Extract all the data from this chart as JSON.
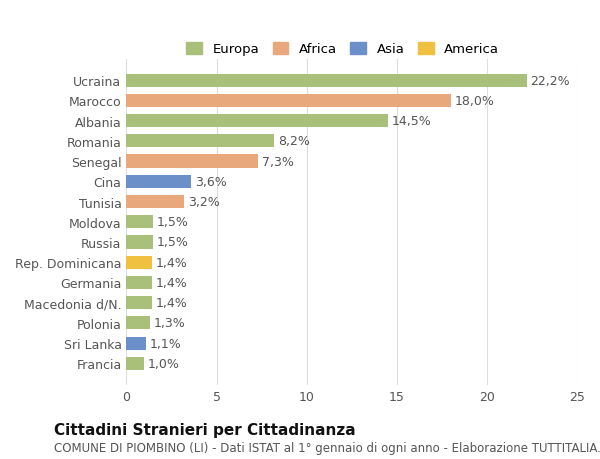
{
  "categories": [
    "Ucraina",
    "Marocco",
    "Albania",
    "Romania",
    "Senegal",
    "Cina",
    "Tunisia",
    "Moldova",
    "Russia",
    "Rep. Dominicana",
    "Germania",
    "Macedonia d/N.",
    "Polonia",
    "Sri Lanka",
    "Francia"
  ],
  "values": [
    22.2,
    18.0,
    14.5,
    8.2,
    7.3,
    3.6,
    3.2,
    1.5,
    1.5,
    1.4,
    1.4,
    1.4,
    1.3,
    1.1,
    1.0
  ],
  "labels": [
    "22,2%",
    "18,0%",
    "14,5%",
    "8,2%",
    "7,3%",
    "3,6%",
    "3,2%",
    "1,5%",
    "1,5%",
    "1,4%",
    "1,4%",
    "1,4%",
    "1,3%",
    "1,1%",
    "1,0%"
  ],
  "bar_colors": [
    "#a8c07a",
    "#e8a87c",
    "#a8c07a",
    "#a8c07a",
    "#e8a87c",
    "#6b8fc9",
    "#e8a87c",
    "#a8c07a",
    "#a8c07a",
    "#f0c040",
    "#a8c07a",
    "#a8c07a",
    "#a8c07a",
    "#6b8fc9",
    "#a8c07a"
  ],
  "legend_labels": [
    "Europa",
    "Africa",
    "Asia",
    "America"
  ],
  "legend_colors": [
    "#a8c07a",
    "#e8a87c",
    "#6b8fc9",
    "#f0c040"
  ],
  "title": "Cittadini Stranieri per Cittadinanza",
  "subtitle": "COMUNE DI PIOMBINO (LI) - Dati ISTAT al 1° gennaio di ogni anno - Elaborazione TUTTITALIA.IT",
  "xlim": [
    0,
    25
  ],
  "xticks": [
    0,
    5,
    10,
    15,
    20,
    25
  ],
  "background_color": "#ffffff",
  "grid_color": "#dddddd",
  "bar_height": 0.65,
  "label_fontsize": 9,
  "tick_fontsize": 9,
  "title_fontsize": 11,
  "subtitle_fontsize": 8.5
}
